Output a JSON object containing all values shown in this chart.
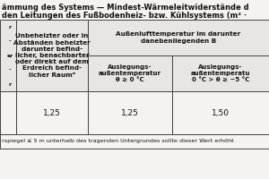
{
  "title_line1": "ämmung des Systems — Mindest-Wärmeleitwiderstände d",
  "title_line2": "den Leitungen des Fußbodenheiz- bzw. Kühlsystems (m² ·",
  "col1_lines": [
    "r",
    "-",
    "er",
    "-",
    "r"
  ],
  "col2_header": "Unbeheizter oder in\nAbständen beheizter\ndarunter befind-\nlicher, benachbarter\noder direkt auf dem\nErdreich befind-\nlicher Raumᵃ",
  "col3_header": "Außenlufttemperatur im darunter\ndanebenliegenden B",
  "col3a_header": "Auslegungs-\naußentemperatur\nθ⁤ ≥ 0 °C",
  "col3b_header": "Auslegungs-\naußentemperatu\n0 °C > θ⁤ ≥ −5 °C",
  "col2_value": "1,25",
  "col3a_value": "1,25",
  "col3b_value": "1,50",
  "footnote": "rspiegel ≤ 5 m unterhalb des tragenden Untergrundes sollte dieser Wert erhöht",
  "bg_color": "#f5f3f0",
  "header_bg": "#e8e6e2",
  "border_color": "#444444",
  "text_color": "#111111",
  "white": "#ffffff"
}
